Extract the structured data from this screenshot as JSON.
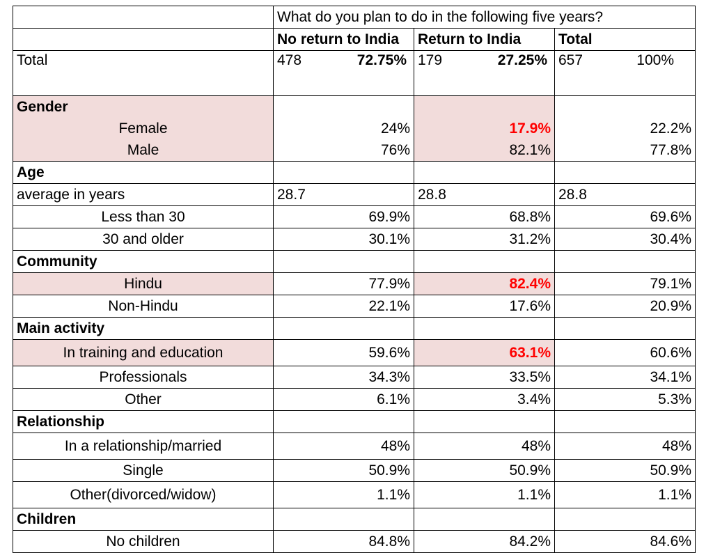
{
  "header": {
    "question": "What do you plan to do in the following five years?",
    "columns": [
      "No return to India",
      "Return to India",
      "Total"
    ]
  },
  "total": {
    "label": "Total",
    "values": [
      {
        "count": "478",
        "pct": "72.75%"
      },
      {
        "count": "179",
        "pct": "27.25%"
      },
      {
        "count": "657",
        "pct": "100%"
      }
    ]
  },
  "sections": [
    {
      "title": "Gender",
      "merged": true,
      "rows": [
        {
          "label": "Female",
          "values": [
            "24%",
            "17.9%",
            "22.2%"
          ],
          "highlight": true
        },
        {
          "label": "Male",
          "values": [
            "76%",
            "82.1%",
            "77.8%"
          ]
        }
      ]
    },
    {
      "title": "Age",
      "rows": [
        {
          "label": "average in years",
          "values": [
            "28.7",
            "28.8",
            "28.8"
          ],
          "summary": true
        },
        {
          "label": "Less than 30",
          "values": [
            "69.9%",
            "68.8%",
            "69.6%"
          ]
        },
        {
          "label": "30 and older",
          "values": [
            "30.1%",
            "31.2%",
            "30.4%"
          ]
        }
      ]
    },
    {
      "title": "Community",
      "rows": [
        {
          "label": "Hindu",
          "values": [
            "77.9%",
            "82.4%",
            "79.1%"
          ],
          "highlight": true
        },
        {
          "label": "Non-Hindu",
          "values": [
            "22.1%",
            "17.6%",
            "20.9%"
          ]
        }
      ]
    },
    {
      "title": "Main activity",
      "rows": [
        {
          "label": "In training and education",
          "values": [
            "59.6%",
            "63.1%",
            "60.6%"
          ],
          "highlight": true
        },
        {
          "label": "Professionals",
          "values": [
            "34.3%",
            "33.5%",
            "34.1%"
          ]
        },
        {
          "label": "Other",
          "values": [
            "6.1%",
            "3.4%",
            "5.3%"
          ]
        }
      ]
    },
    {
      "title": "Relationship",
      "rows": [
        {
          "label": "In a relationship/married",
          "values": [
            "48%",
            "48%",
            "48%"
          ]
        },
        {
          "label": "Single",
          "values": [
            "50.9%",
            "50.9%",
            "50.9%"
          ]
        },
        {
          "label": "Other(divorced/widow)",
          "values": [
            "1.1%",
            "1.1%",
            "1.1%"
          ]
        }
      ]
    },
    {
      "title": "Children",
      "rows": [
        {
          "label": "No children",
          "values": [
            "84.8%",
            "84.2%",
            "84.6%"
          ]
        }
      ]
    }
  ]
}
